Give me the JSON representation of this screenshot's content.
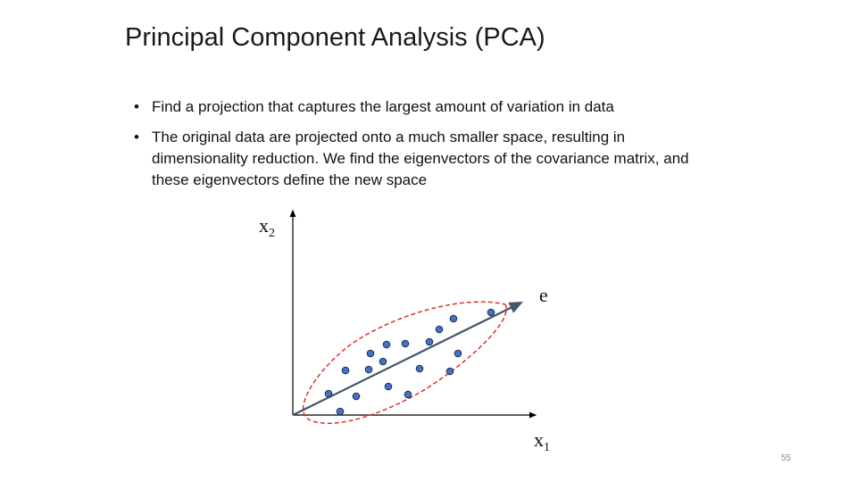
{
  "slide": {
    "title": "Principal Component Analysis (PCA)",
    "bullets": [
      "Find a projection that captures the largest amount of variation in data",
      "The original data are projected onto a much smaller space, resulting in dimensionality reduction. We find the eigenvectors of the covariance matrix, and these eigenvectors define the new space"
    ],
    "bullet_marker": "•",
    "page_number": "55"
  },
  "diagram": {
    "y_axis_label": "x",
    "y_axis_subscript": "2",
    "x_axis_label": "x",
    "x_axis_subscript": "1",
    "eigenvector_label": "e",
    "colors": {
      "axis": "#000000",
      "eigenvector": "#44546a",
      "ellipse": "#e02020",
      "point_fill": "#4472c4",
      "point_stroke": "#1f2d4d"
    }
  }
}
